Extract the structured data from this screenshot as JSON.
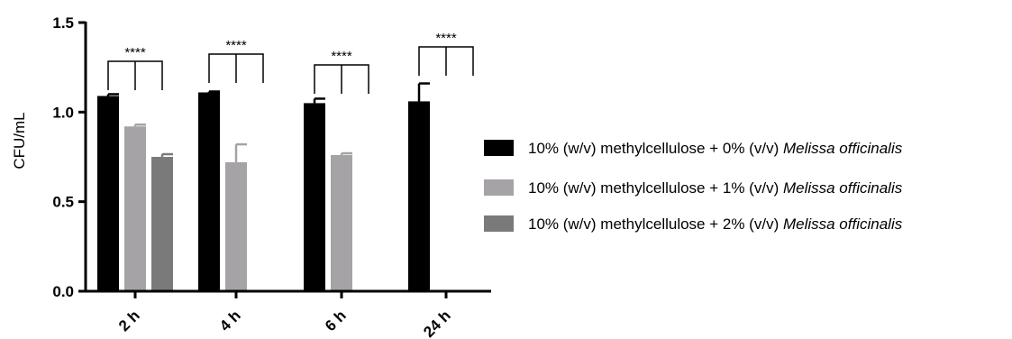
{
  "chart_data": {
    "type": "bar",
    "title": "",
    "xlabel": "",
    "ylabel": "CFU/mL",
    "ylim": [
      0,
      1.5
    ],
    "yticks": [
      "0.0",
      "0.5",
      "1.0",
      "1.5"
    ],
    "categories": [
      "2 h",
      "4 h",
      "6 h",
      "24 h"
    ],
    "series": [
      {
        "name": "10% (w/v) methylcellulose + 0% (v/v) Melissa officinalis",
        "name_plain": "10% (w/v) methylcellulose + 0% (v/v) ",
        "name_italic": "Melissa officinalis",
        "color": "#000000",
        "values": [
          1.09,
          1.11,
          1.05,
          1.06
        ],
        "errors": [
          0.01,
          0.005,
          0.025,
          0.1
        ]
      },
      {
        "name": "10% (w/v) methylcellulose + 1% (v/v) Melissa officinalis",
        "name_plain": "10% (w/v) methylcellulose + 1% (v/v) ",
        "name_italic": "Melissa officinalis",
        "color": "#a5a3a6",
        "values": [
          0.92,
          0.72,
          0.76,
          null
        ],
        "errors": [
          0.01,
          0.1,
          0.01,
          null
        ]
      },
      {
        "name": "10% (w/v) methylcellulose + 2% (v/v) Melissa officinalis",
        "name_plain": "10% (w/v) methylcellulose + 2% (v/v) ",
        "name_italic": "Melissa officinalis",
        "color": "#7a7a7a",
        "values": [
          0.75,
          null,
          null,
          null
        ],
        "errors": [
          0.015,
          null,
          null,
          null
        ]
      }
    ],
    "significance": [
      "****",
      "****",
      "****",
      "****"
    ],
    "legend_position": "right",
    "grid": false
  }
}
